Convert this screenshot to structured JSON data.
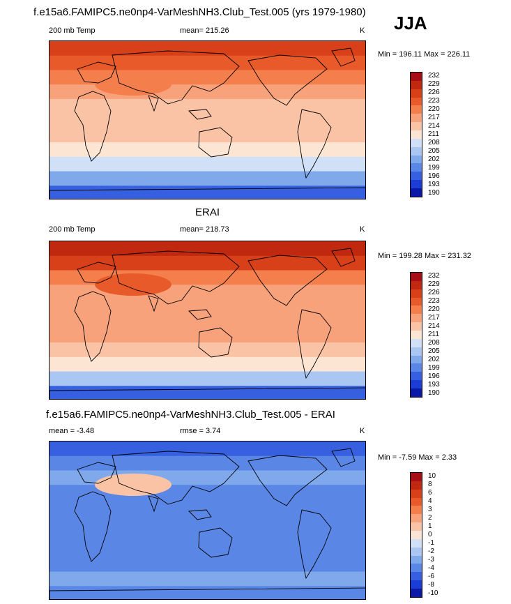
{
  "season": "JJA",
  "units": "K",
  "panels": [
    {
      "title": "f.e15a6.FAMIPC5.ne0np4-VarMeshNH3.Club_Test.005 (yrs 1979-1980)",
      "left_label": "200 mb Temp",
      "mid_label": "mean= 215.26",
      "range": "Min = 196.11 Max = 226.11",
      "levels": [
        "232",
        "229",
        "226",
        "223",
        "220",
        "217",
        "214",
        "211",
        "208",
        "205",
        "202",
        "199",
        "196",
        "193",
        "190"
      ],
      "colors": [
        "#a50f15",
        "#c0280f",
        "#d8401a",
        "#e85a2a",
        "#f47f4c",
        "#f8a27c",
        "#fbc3a6",
        "#fde5d3",
        "#cfe0f7",
        "#a9c7f2",
        "#80a9ec",
        "#5a86e6",
        "#3660df",
        "#1c3cd6",
        "#0a1aa6"
      ],
      "bands": [
        "#d8401a",
        "#e85a2a",
        "#f47f4c",
        "#f8a27c",
        "#fbc3a6",
        "#fbc3a6",
        "#fbc3a6",
        "#fde5d3",
        "#cfe0f7",
        "#80a9ec",
        "#3660df"
      ],
      "blob_color": "#f47f4c"
    },
    {
      "title": "ERAI",
      "left_label": "200 mb Temp",
      "mid_label": "mean= 218.73",
      "range": "Min = 199.28 Max = 231.32",
      "levels": [
        "232",
        "229",
        "226",
        "223",
        "220",
        "217",
        "214",
        "211",
        "208",
        "205",
        "202",
        "199",
        "196",
        "193",
        "190"
      ],
      "colors": [
        "#a50f15",
        "#c0280f",
        "#d8401a",
        "#e85a2a",
        "#f47f4c",
        "#f8a27c",
        "#fbc3a6",
        "#fde5d3",
        "#cfe0f7",
        "#a9c7f2",
        "#80a9ec",
        "#5a86e6",
        "#3660df",
        "#1c3cd6",
        "#0a1aa6"
      ],
      "bands": [
        "#c0280f",
        "#d8401a",
        "#f47f4c",
        "#f8a27c",
        "#f8a27c",
        "#f8a27c",
        "#f8a27c",
        "#fbc3a6",
        "#fde5d3",
        "#a9c7f2",
        "#3660df"
      ],
      "blob_color": "#e85a2a"
    },
    {
      "title": "f.e15a6.FAMIPC5.ne0np4-VarMeshNH3.Club_Test.005 - ERAI",
      "left_label": "mean =  -3.48",
      "mid_label": "rmse =   3.74",
      "range": "Min =  -7.59 Max =   2.33",
      "levels": [
        "10",
        "8",
        "6",
        "4",
        "3",
        "2",
        "1",
        "0",
        "-1",
        "-2",
        "-3",
        "-4",
        "-6",
        "-8",
        "-10"
      ],
      "colors": [
        "#a50f15",
        "#c0280f",
        "#d8401a",
        "#e85a2a",
        "#f47f4c",
        "#f8a27c",
        "#fbc3a6",
        "#fde5d3",
        "#cfe0f7",
        "#a9c7f2",
        "#80a9ec",
        "#5a86e6",
        "#3660df",
        "#1c3cd6",
        "#0a1aa6"
      ],
      "bands": [
        "#3660df",
        "#5a86e6",
        "#80a9ec",
        "#5a86e6",
        "#5a86e6",
        "#5a86e6",
        "#5a86e6",
        "#5a86e6",
        "#5a86e6",
        "#80a9ec",
        "#5a86e6"
      ],
      "blob_color": "#fbc3a6"
    }
  ]
}
